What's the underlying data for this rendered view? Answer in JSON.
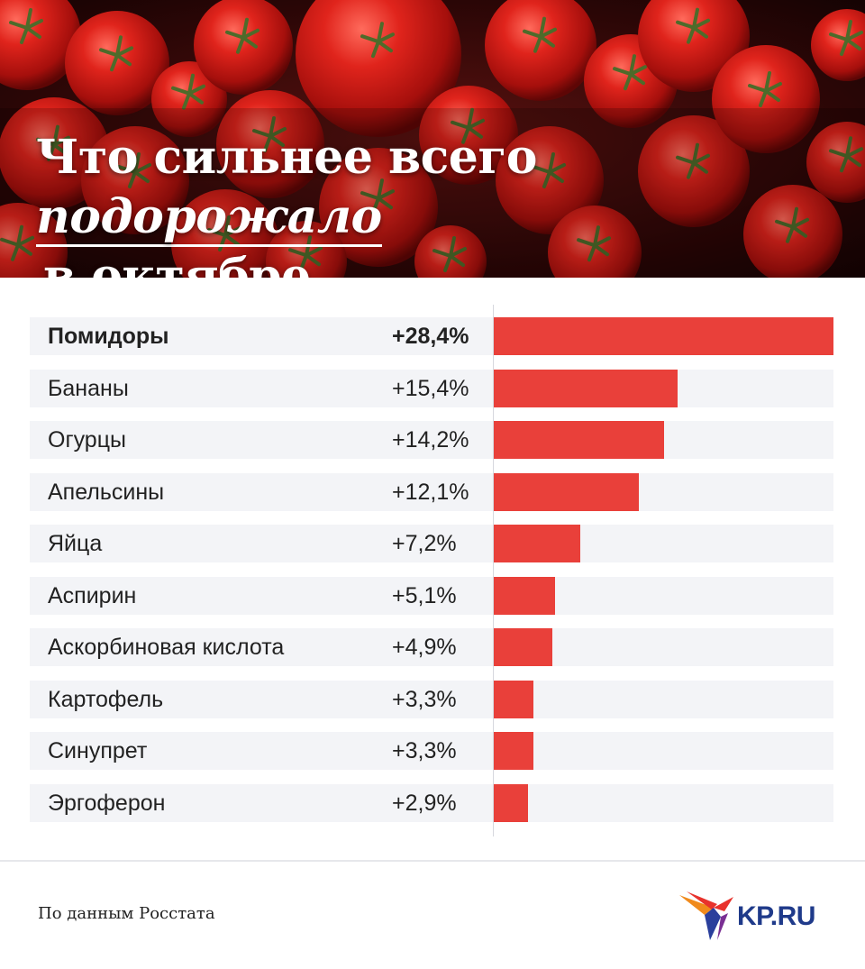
{
  "header": {
    "title_part1": "Что сильнее всего ",
    "title_emphasis": "подорожало",
    "title_line2": "в октябре"
  },
  "chart_data": {
    "type": "bar",
    "orientation": "horizontal",
    "title": "Что сильнее всего подорожало в октябре",
    "categories": [
      "Помидоры",
      "Бананы",
      "Огурцы",
      "Апельсины",
      "Яйца",
      "Аспирин",
      "Аскорбиновая кислота",
      "Картофель",
      "Синупрет",
      "Эргоферон"
    ],
    "values": [
      28.4,
      15.4,
      14.2,
      12.1,
      7.2,
      5.1,
      4.9,
      3.3,
      3.3,
      2.9
    ],
    "value_labels": [
      "+28,4%",
      "+15,4%",
      "+14,2%",
      "+12,1%",
      "+7,2%",
      "+5,1%",
      "+4,9%",
      "+3,3%",
      "+3,3%",
      "+2,9%"
    ],
    "unit": "%",
    "xlim": [
      0,
      28.4
    ],
    "bar_color": "#e9403a",
    "grid": false,
    "legend": "none"
  },
  "footer": {
    "source": "По данным Росстата",
    "logo_text": "KP.RU"
  },
  "colors": {
    "bar": "#e9403a",
    "stripe": "#f3f4f7",
    "logo_blue": "#1f3a8a"
  },
  "icons": [
    "tomato-photo",
    "kp-bird-logo-icon"
  ]
}
